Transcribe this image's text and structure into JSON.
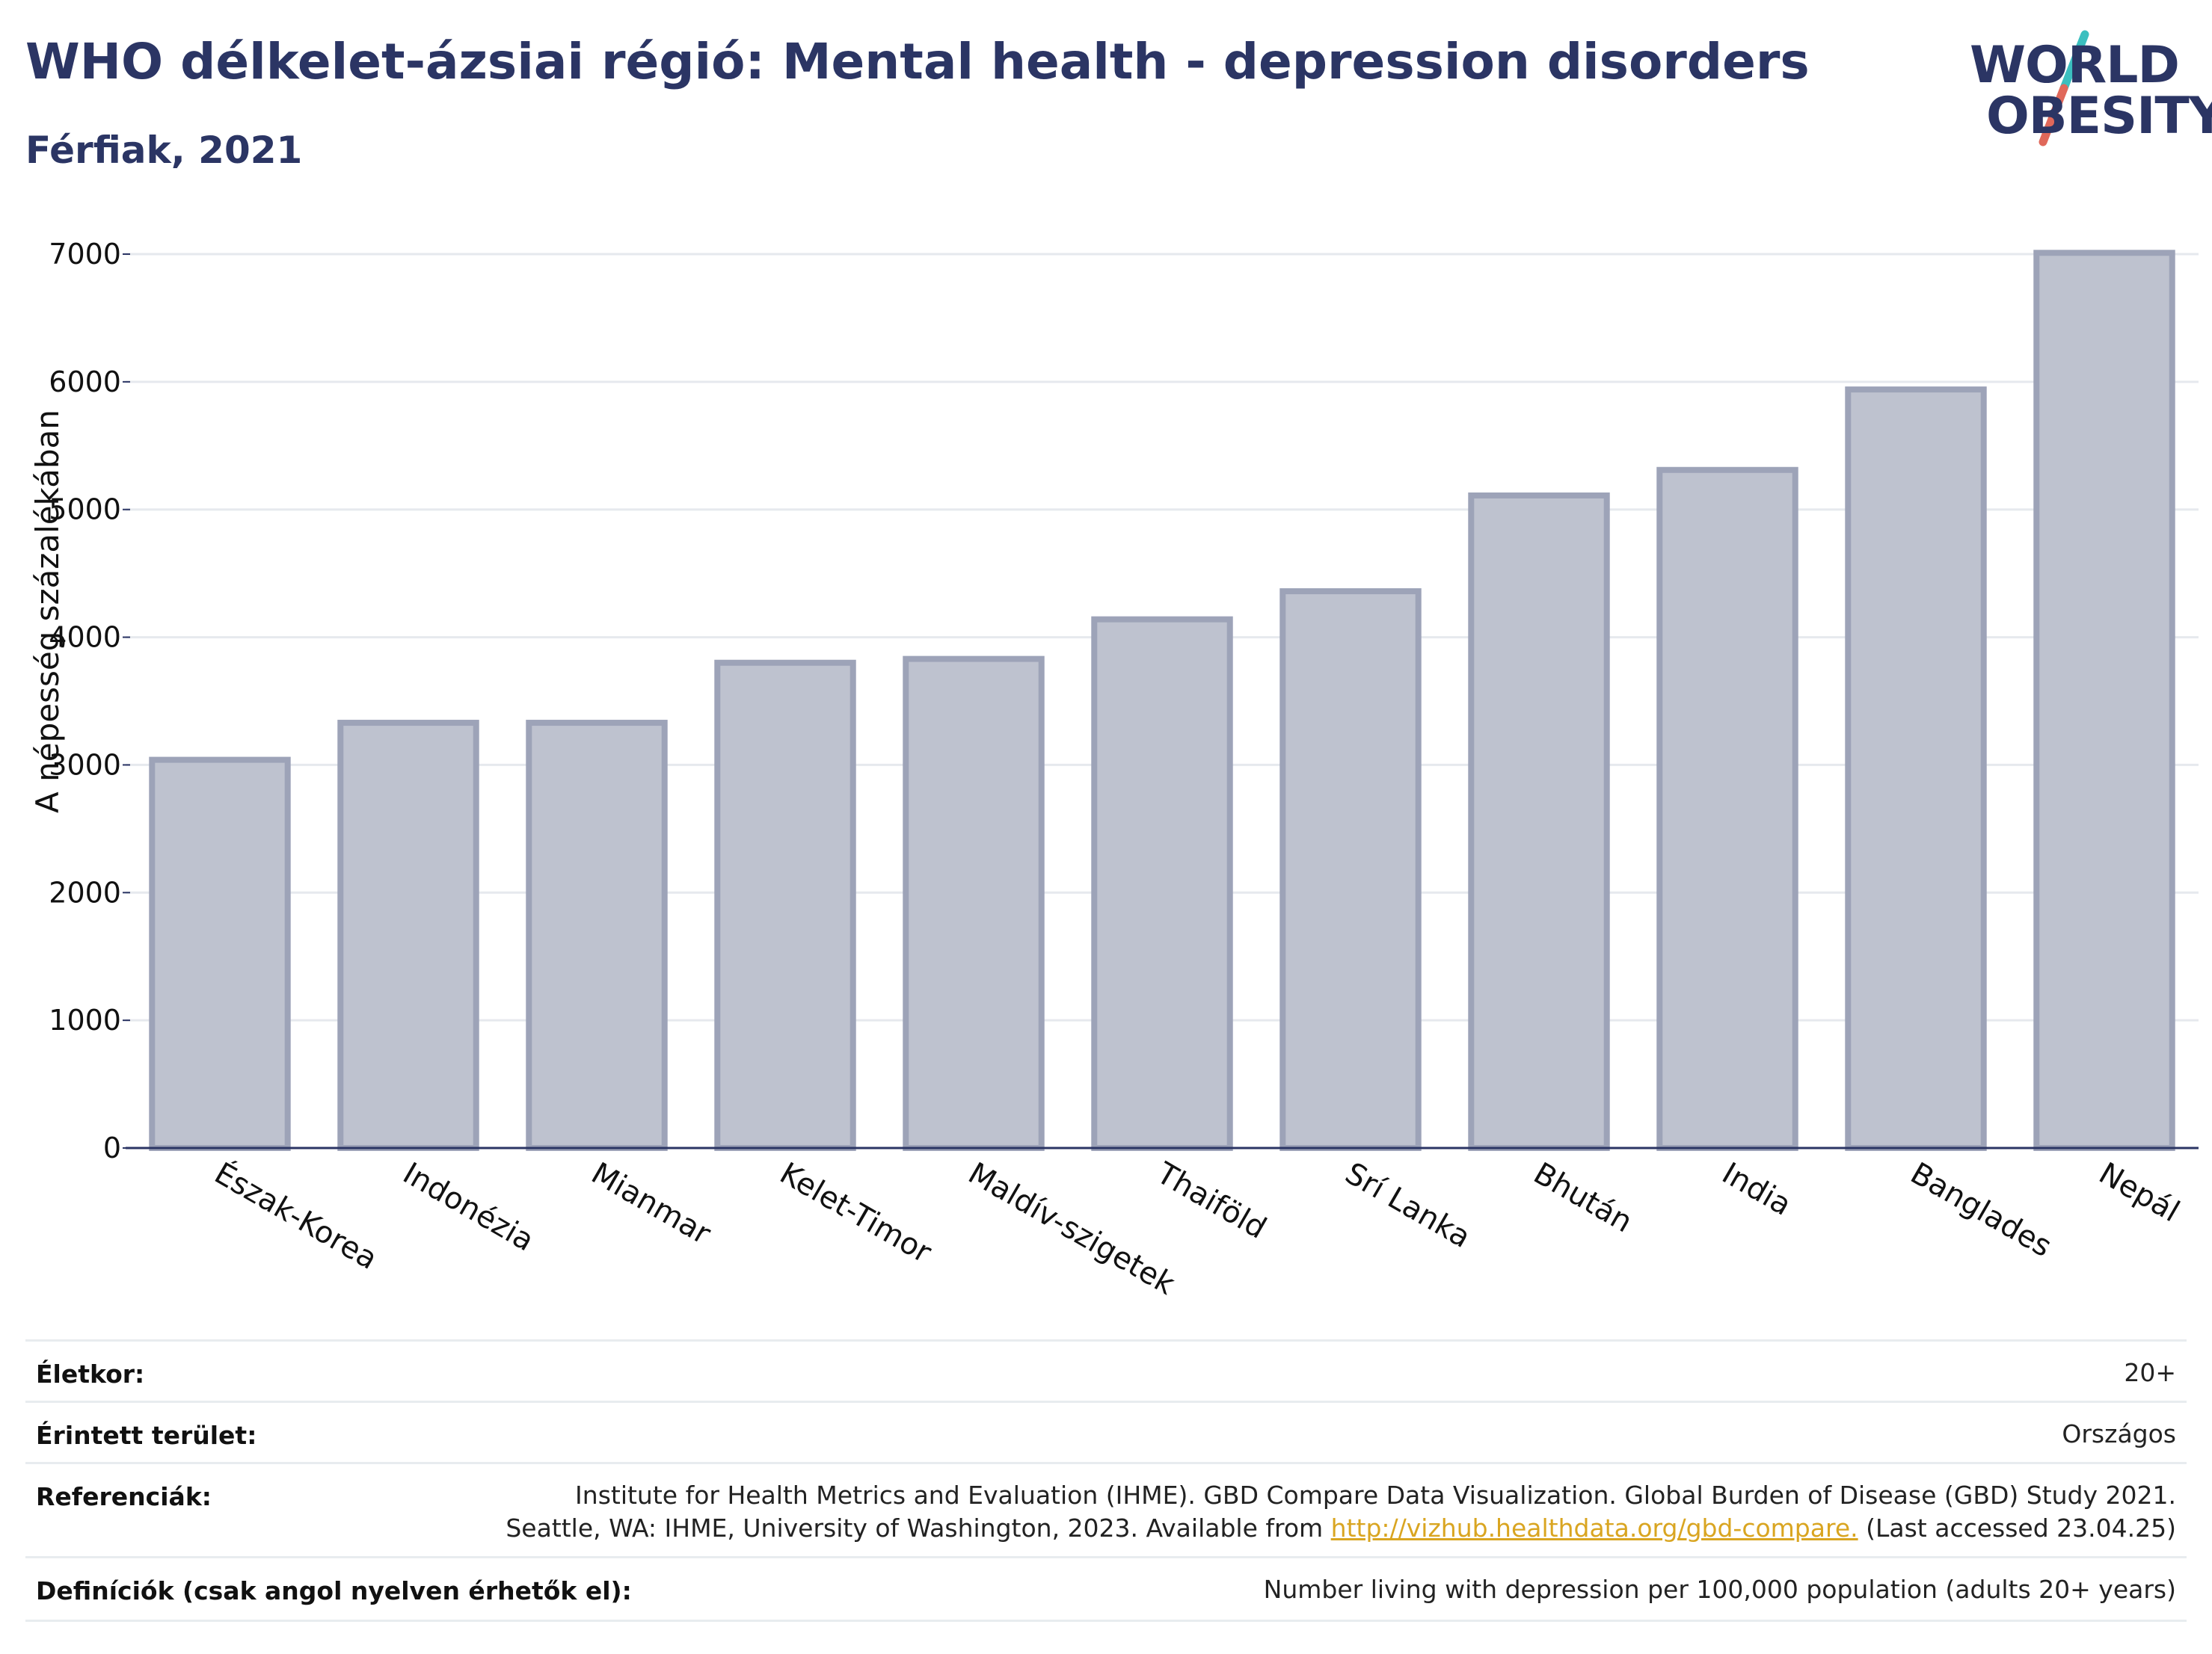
{
  "header": {
    "title": "WHO délkelet-ázsiai régió: Mental health - depression disorders",
    "subtitle": "Férfiak, 2021"
  },
  "logo": {
    "line1": "WORLD",
    "line2": "OBESITY",
    "colors": {
      "text": "#2b3564",
      "slash_top": "#3bbfbf",
      "slash_bottom": "#e0685a"
    }
  },
  "chart_data": {
    "type": "bar",
    "title": "WHO délkelet-ázsiai régió: Mental health - depression disorders",
    "subtitle": "Férfiak, 2021",
    "xlabel": "",
    "ylabel": "A népesség százalékában",
    "ylim": [
      0,
      7000
    ],
    "yticks": [
      0,
      1000,
      2000,
      3000,
      4000,
      5000,
      6000,
      7000
    ],
    "grid": true,
    "categories": [
      "Észak-Korea",
      "Indonézia",
      "Mianmar",
      "Kelet-Timor",
      "Maldív-szigetek",
      "Thaiföld",
      "Srí Lanka",
      "Bhután",
      "India",
      "Banglades",
      "Nepál"
    ],
    "values": [
      3040,
      3330,
      3330,
      3800,
      3830,
      4140,
      4360,
      5110,
      5310,
      5940,
      7010
    ],
    "colors": {
      "bar_fill": "#bec2cf",
      "bar_stroke": "#9da3b8",
      "axis": "#2b3564",
      "grid": "#e6e9ee"
    }
  },
  "meta": {
    "rows": [
      {
        "label": "Életkor:",
        "value_lines": [
          "20+"
        ]
      },
      {
        "label": "Érintett terület:",
        "value_lines": [
          "Országos"
        ]
      },
      {
        "label": "Referenciák:",
        "value_lines": [
          "Institute for Health Metrics and Evaluation (IHME). GBD Compare Data Visualization. Global Burden of Disease (GBD) Study 2021.",
          "Seattle, WA: IHME, University of Washington, 2023. Available from"
        ],
        "link": "http://vizhub.healthdata.org/gbd-compare.",
        "after_link": "(Last accessed 23.04.25)"
      },
      {
        "label": "Definíciók (csak angol nyelven érhetők el):",
        "value_lines": [
          "Number living with depression per 100,000 population (adults 20+ years)"
        ]
      }
    ]
  }
}
